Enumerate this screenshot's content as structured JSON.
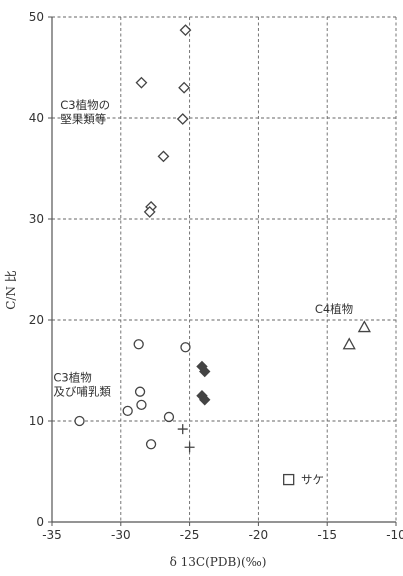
{
  "chart_data": {
    "type": "scatter",
    "title": "",
    "xlabel": "δ 13C(PDB)(‰)",
    "ylabel": "C/N 比",
    "xlim": [
      -35,
      -10
    ],
    "ylim": [
      0,
      50
    ],
    "xticks": [
      -35,
      -30,
      -25,
      -20,
      -15,
      -10
    ],
    "yticks": [
      0,
      10,
      20,
      30,
      40,
      50
    ],
    "x_tick_labels": [
      "-35",
      "-30",
      "-25",
      "-20",
      "-15",
      "-10"
    ],
    "y_tick_labels": [
      "0",
      "10",
      "20",
      "30",
      "40",
      "50"
    ],
    "grid": true,
    "grid_style": "dashed",
    "series": [
      {
        "marker": "diamond-open",
        "points": [
          [
            -25.3,
            48.7
          ],
          [
            -28.5,
            43.5
          ],
          [
            -25.4,
            43.0
          ],
          [
            -25.5,
            39.9
          ],
          [
            -26.9,
            36.2
          ],
          [
            -27.8,
            31.2
          ],
          [
            -27.9,
            30.7
          ]
        ]
      },
      {
        "marker": "circle-open",
        "points": [
          [
            -33.0,
            10.0
          ],
          [
            -28.7,
            17.6
          ],
          [
            -25.3,
            17.3
          ],
          [
            -28.6,
            12.9
          ],
          [
            -28.5,
            11.6
          ],
          [
            -29.5,
            11.0
          ],
          [
            -26.5,
            10.4
          ],
          [
            -27.8,
            7.7
          ]
        ]
      },
      {
        "marker": "diamond-filled",
        "points": [
          [
            -24.1,
            15.4
          ],
          [
            -23.9,
            14.9
          ],
          [
            -24.1,
            12.5
          ],
          [
            -23.9,
            12.1
          ]
        ]
      },
      {
        "marker": "plus",
        "points": [
          [
            -25.5,
            9.2
          ],
          [
            -25.0,
            7.4
          ]
        ]
      },
      {
        "marker": "triangle-open",
        "points": [
          [
            -12.3,
            19.3
          ],
          [
            -13.4,
            17.6
          ]
        ]
      },
      {
        "marker": "square-open",
        "points": [
          [
            -17.8,
            4.2
          ]
        ]
      }
    ],
    "annotations": [
      {
        "lines": [
          "C3植物の",
          "堅果類等"
        ],
        "x": -34.4,
        "y": 41.3
      },
      {
        "lines": [
          "C4植物"
        ],
        "x": -15.9,
        "y": 21.1
      },
      {
        "lines": [
          "C3植物",
          "及び哺乳類"
        ],
        "x": -34.9,
        "y": 14.3
      },
      {
        "lines": [
          "サケ"
        ],
        "x": -16.9,
        "y": 4.2
      }
    ],
    "colors": {
      "marker": "#444444",
      "grid": "#666666",
      "axis": "#555555",
      "text": "#333333"
    }
  }
}
